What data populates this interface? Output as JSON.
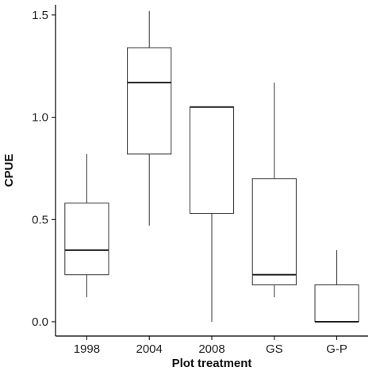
{
  "chart_data": {
    "type": "boxplot",
    "xlabel": "Plot treatment",
    "ylabel": "CPUE",
    "ylim": [
      -0.07,
      1.55
    ],
    "yticks": [
      "0.0",
      "0.5",
      "1.0",
      "1.5"
    ],
    "grid": false,
    "legend": "none",
    "categories": [
      "1998",
      "2004",
      "2008",
      "GS",
      "G-P"
    ],
    "series": [
      {
        "boxes": [
          {
            "category": "1998",
            "min": 0.12,
            "q1": 0.23,
            "median": 0.35,
            "q3": 0.58,
            "max": 0.82
          },
          {
            "category": "2004",
            "min": 0.47,
            "q1": 0.82,
            "median": 1.17,
            "q3": 1.34,
            "max": 1.52
          },
          {
            "category": "2008",
            "min": 0.0,
            "q1": 0.53,
            "median": 1.05,
            "q3": 1.05,
            "max": 1.05
          },
          {
            "category": "GS",
            "min": 0.12,
            "q1": 0.18,
            "median": 0.23,
            "q3": 0.7,
            "max": 1.17
          },
          {
            "category": "G-P",
            "min": 0.0,
            "q1": 0.0,
            "median": 0.0,
            "q3": 0.18,
            "max": 0.35
          }
        ]
      }
    ]
  }
}
